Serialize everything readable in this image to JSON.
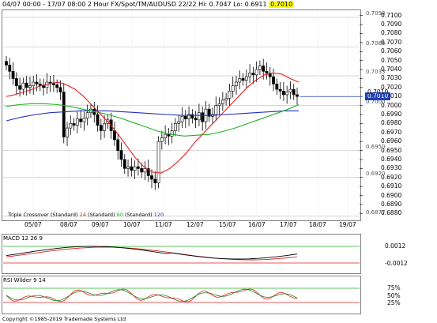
{
  "header": {
    "range": "04/07 00:00 - 17/07 08:00",
    "interval": "2 Hour",
    "instrument": "FX/Spot/TM/AUDUSD 22/22",
    "hi": "Hi: 0.7047",
    "lo": "Lo: 0.6911",
    "last": "0.7010"
  },
  "price_axis": [
    "0.7100",
    "0.7090",
    "0.7080",
    "0.7070",
    "0.7060",
    "0.7050",
    "0.7040",
    "0.7030",
    "0.7020",
    "0.7010",
    "0.7000",
    "0.6990",
    "0.6980",
    "0.6970",
    "0.6960",
    "0.6950",
    "0.6940",
    "0.6930",
    "0.6920",
    "0.6910",
    "0.6900",
    "0.6890",
    "0.6880"
  ],
  "levels": [
    {
      "label": "0.7098",
      "value": 0.7098
    },
    {
      "label": "0.7065",
      "value": 0.7065
    },
    {
      "label": "0.7033",
      "value": 0.7033
    },
    {
      "label": "0.7000",
      "value": 0.7
    },
    {
      "label": "0.6950",
      "value": 0.695
    },
    {
      "label": "0.6920",
      "value": 0.692
    },
    {
      "label": "0.6877",
      "value": 0.6877
    }
  ],
  "current_price": {
    "label": "0.7010",
    "value": 0.701,
    "color": "#1f3fb0"
  },
  "left_value": "0.7010",
  "x_labels": [
    "05/07",
    "08/07",
    "09/07",
    "10/07",
    "11/07",
    "12/07",
    "15/07",
    "16/07",
    "17/07",
    "18/07",
    "19/07"
  ],
  "legend": {
    "name": "Triple Crossover (Standard)",
    "p1": "24",
    "p1_label": "(Standard)",
    "p2": "60",
    "p2_label": "(Standard)",
    "p3": "120",
    "colors": {
      "p1": "#e02020",
      "p2": "#20b020",
      "p3": "#2030c0"
    }
  },
  "macd": {
    "title": "MACD 12 26 9",
    "levels": [
      "0.0012",
      "-0.0012"
    ]
  },
  "rsi": {
    "title": "RSI Wilder 9 14",
    "levels": [
      "75%",
      "50%",
      "25%"
    ]
  },
  "copyright": "Copyright ©1985-2019 Trademade Systems Ltd",
  "chart_data": {
    "type": "candlestick",
    "ylim": [
      0.6875,
      0.7105
    ],
    "candles_close": [
      0.7045,
      0.7038,
      0.703,
      0.7022,
      0.7018,
      0.7025,
      0.702,
      0.7022,
      0.7026,
      0.7024,
      0.7022,
      0.702,
      0.7026,
      0.7025,
      0.7023,
      0.702,
      0.7015,
      0.6965,
      0.6975,
      0.698,
      0.6978,
      0.6985,
      0.6982,
      0.6986,
      0.6992,
      0.6996,
      0.699,
      0.6978,
      0.6972,
      0.698,
      0.6984,
      0.6972,
      0.6962,
      0.695,
      0.694,
      0.693,
      0.6932,
      0.6928,
      0.6932,
      0.693,
      0.6926,
      0.693,
      0.6922,
      0.6918,
      0.6914,
      0.696,
      0.6964,
      0.6968,
      0.6966,
      0.6972,
      0.698,
      0.6982,
      0.6988,
      0.6985,
      0.699,
      0.6986,
      0.6984,
      0.6992,
      0.6982,
      0.6996,
      0.6988,
      0.699,
      0.7,
      0.7002,
      0.7006,
      0.7008,
      0.7016,
      0.7022,
      0.7026,
      0.703,
      0.7028,
      0.7032,
      0.7036,
      0.7034,
      0.704,
      0.7044,
      0.7038,
      0.7036,
      0.7032,
      0.7024,
      0.7018,
      0.7016,
      0.7012,
      0.7015,
      0.7018,
      0.7012,
      0.701
    ],
    "ma24": [
      0.701,
      0.7012,
      0.7015,
      0.7018,
      0.7022,
      0.7024,
      0.7026,
      0.7023,
      0.7018,
      0.701,
      0.7,
      0.699,
      0.698,
      0.6968,
      0.6955,
      0.6942,
      0.6932,
      0.6926,
      0.6925,
      0.693,
      0.6938,
      0.6948,
      0.696,
      0.697,
      0.698,
      0.699,
      0.7,
      0.701,
      0.702,
      0.7028,
      0.7034,
      0.7036,
      0.7035,
      0.703,
      0.7026
    ],
    "ma60": [
      0.6999,
      0.7001,
      0.7002,
      0.7002,
      0.7001,
      0.6999,
      0.6996,
      0.6993,
      0.699,
      0.6986,
      0.6981,
      0.6976,
      0.6971,
      0.6968,
      0.6966,
      0.6967,
      0.6968,
      0.6971,
      0.6975,
      0.698,
      0.6985,
      0.699,
      0.6995,
      0.7001
    ],
    "ma120": [
      0.6983,
      0.6987,
      0.699,
      0.6992,
      0.6993,
      0.6994,
      0.6994,
      0.6994,
      0.6993,
      0.6992,
      0.6991,
      0.699,
      0.6989,
      0.6989,
      0.6989,
      0.699,
      0.6991,
      0.6992,
      0.6993,
      0.6994,
      0.6994
    ]
  }
}
